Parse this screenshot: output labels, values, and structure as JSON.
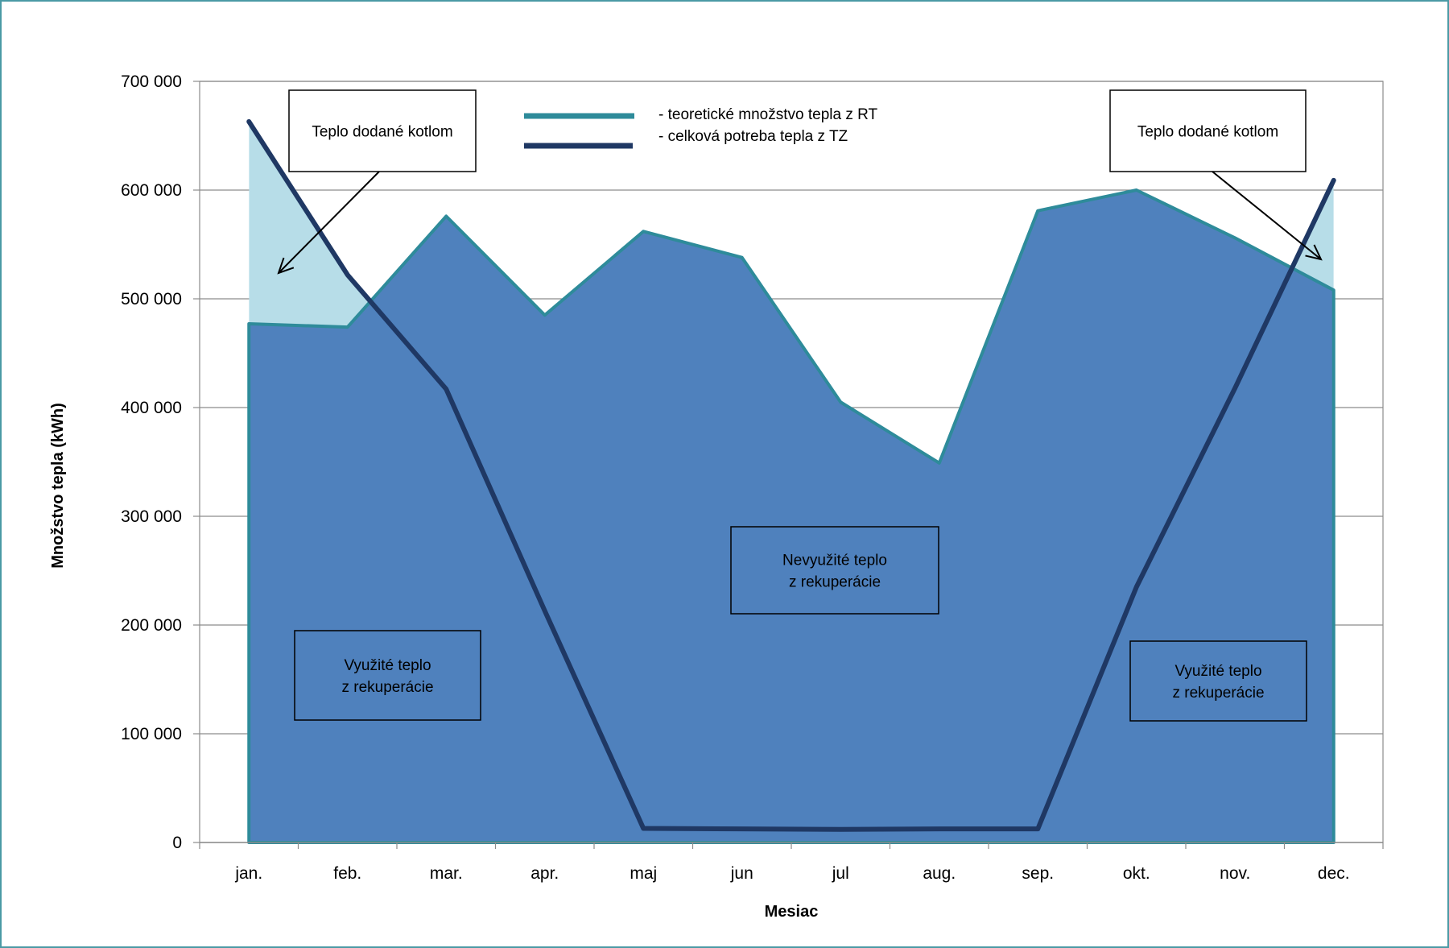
{
  "chart_data": {
    "type": "area",
    "title": "",
    "xlabel": "Mesiac",
    "ylabel": "Množstvo tepla  (kWh)",
    "categories": [
      "jan.",
      "feb.",
      "mar.",
      "apr.",
      "maj",
      "jun",
      "jul",
      "aug.",
      "sep.",
      "okt.",
      "nov.",
      "dec."
    ],
    "ylim": [
      0,
      700000
    ],
    "ytick_labels": [
      "0",
      "100 000",
      "200 000",
      "300 000",
      "400 000",
      "500 000",
      "600 000",
      "700 000"
    ],
    "grid": true,
    "series": [
      {
        "name": "- teoretické množstvo tepla z RT",
        "type": "area",
        "color": "#2e8b9a",
        "fill": "#4f81bd",
        "values": [
          477000,
          474000,
          576000,
          485000,
          562000,
          538000,
          405000,
          349000,
          581000,
          600000,
          556000,
          508000
        ]
      },
      {
        "name": "- celková potreba tepla z TZ",
        "type": "line",
        "color": "#1f3864",
        "values": [
          663000,
          522000,
          417000,
          213000,
          13000,
          12500,
          12000,
          12500,
          12500,
          235000,
          418000,
          609000
        ]
      }
    ],
    "excess_fill_color": "#b7dde8",
    "annotations": {
      "boiler_left": "Teplo dodané  kotlom",
      "boiler_right": "Teplo dodané  kotlom",
      "used_left": [
        "Využité teplo",
        "z rekuperácie"
      ],
      "unused_middle": [
        "Nevyužité teplo",
        "z rekuperácie"
      ],
      "used_right": [
        "Využité teplo",
        "z rekuperácie"
      ]
    }
  }
}
